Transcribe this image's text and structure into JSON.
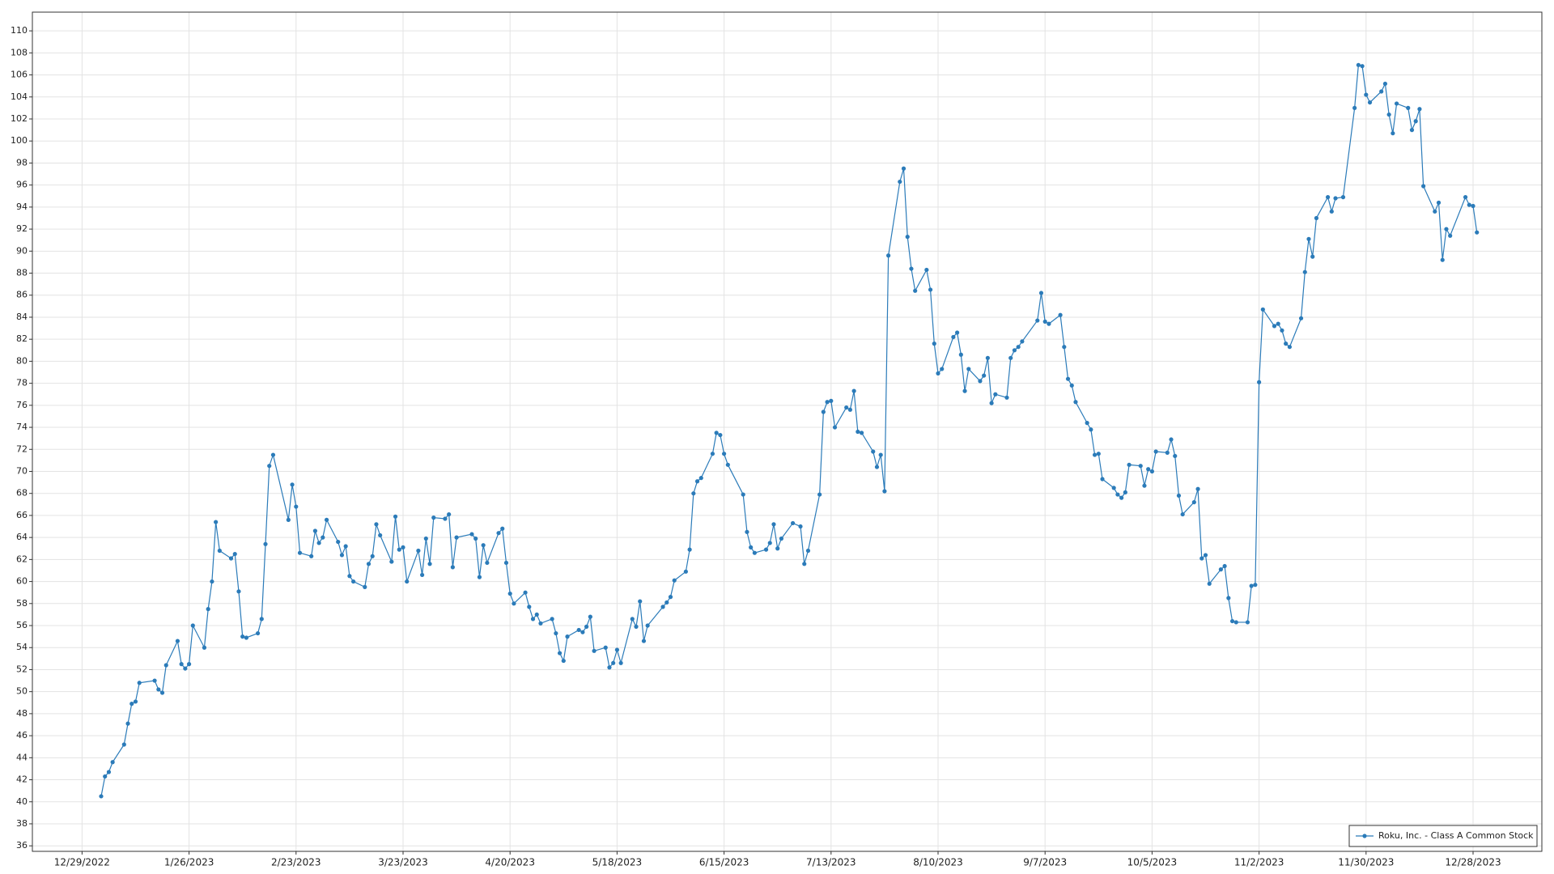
{
  "chart_data": {
    "type": "line",
    "x": [
      "1/3/2023",
      "1/4/2023",
      "1/5/2023",
      "1/6/2023",
      "1/9/2023",
      "1/10/2023",
      "1/11/2023",
      "1/12/2023",
      "1/13/2023",
      "1/17/2023",
      "1/18/2023",
      "1/19/2023",
      "1/20/2023",
      "1/23/2023",
      "1/24/2023",
      "1/25/2023",
      "1/26/2023",
      "1/27/2023",
      "1/30/2023",
      "1/31/2023",
      "2/1/2023",
      "2/2/2023",
      "2/3/2023",
      "2/6/2023",
      "2/7/2023",
      "2/8/2023",
      "2/9/2023",
      "2/10/2023",
      "2/13/2023",
      "2/14/2023",
      "2/15/2023",
      "2/16/2023",
      "2/17/2023",
      "2/21/2023",
      "2/22/2023",
      "2/23/2023",
      "2/24/2023",
      "2/27/2023",
      "2/28/2023",
      "3/1/2023",
      "3/2/2023",
      "3/3/2023",
      "3/6/2023",
      "3/7/2023",
      "3/8/2023",
      "3/9/2023",
      "3/10/2023",
      "3/13/2023",
      "3/14/2023",
      "3/15/2023",
      "3/16/2023",
      "3/17/2023",
      "3/20/2023",
      "3/21/2023",
      "3/22/2023",
      "3/23/2023",
      "3/24/2023",
      "3/27/2023",
      "3/28/2023",
      "3/29/2023",
      "3/30/2023",
      "3/31/2023",
      "4/3/2023",
      "4/4/2023",
      "4/5/2023",
      "4/6/2023",
      "4/10/2023",
      "4/11/2023",
      "4/12/2023",
      "4/13/2023",
      "4/14/2023",
      "4/17/2023",
      "4/18/2023",
      "4/19/2023",
      "4/20/2023",
      "4/21/2023",
      "4/24/2023",
      "4/25/2023",
      "4/26/2023",
      "4/27/2023",
      "4/28/2023",
      "5/1/2023",
      "5/2/2023",
      "5/3/2023",
      "5/4/2023",
      "5/5/2023",
      "5/8/2023",
      "5/9/2023",
      "5/10/2023",
      "5/11/2023",
      "5/12/2023",
      "5/15/2023",
      "5/16/2023",
      "5/17/2023",
      "5/18/2023",
      "5/19/2023",
      "5/22/2023",
      "5/23/2023",
      "5/24/2023",
      "5/25/2023",
      "5/26/2023",
      "5/30/2023",
      "5/31/2023",
      "6/1/2023",
      "6/2/2023",
      "6/5/2023",
      "6/6/2023",
      "6/7/2023",
      "6/8/2023",
      "6/9/2023",
      "6/12/2023",
      "6/13/2023",
      "6/14/2023",
      "6/15/2023",
      "6/16/2023",
      "6/20/2023",
      "6/21/2023",
      "6/22/2023",
      "6/23/2023",
      "6/26/2023",
      "6/27/2023",
      "6/28/2023",
      "6/29/2023",
      "6/30/2023",
      "7/3/2023",
      "7/5/2023",
      "7/6/2023",
      "7/7/2023",
      "7/10/2023",
      "7/11/2023",
      "7/12/2023",
      "7/13/2023",
      "7/14/2023",
      "7/17/2023",
      "7/18/2023",
      "7/19/2023",
      "7/20/2023",
      "7/21/2023",
      "7/24/2023",
      "7/25/2023",
      "7/26/2023",
      "7/27/2023",
      "7/28/2023",
      "7/31/2023",
      "8/1/2023",
      "8/2/2023",
      "8/3/2023",
      "8/4/2023",
      "8/7/2023",
      "8/8/2023",
      "8/9/2023",
      "8/10/2023",
      "8/11/2023",
      "8/14/2023",
      "8/15/2023",
      "8/16/2023",
      "8/17/2023",
      "8/18/2023",
      "8/21/2023",
      "8/22/2023",
      "8/23/2023",
      "8/24/2023",
      "8/25/2023",
      "8/28/2023",
      "8/29/2023",
      "8/30/2023",
      "8/31/2023",
      "9/1/2023",
      "9/5/2023",
      "9/6/2023",
      "9/7/2023",
      "9/8/2023",
      "9/11/2023",
      "9/12/2023",
      "9/13/2023",
      "9/14/2023",
      "9/15/2023",
      "9/18/2023",
      "9/19/2023",
      "9/20/2023",
      "9/21/2023",
      "9/22/2023",
      "9/25/2023",
      "9/26/2023",
      "9/27/2023",
      "9/28/2023",
      "9/29/2023",
      "10/2/2023",
      "10/3/2023",
      "10/4/2023",
      "10/5/2023",
      "10/6/2023",
      "10/9/2023",
      "10/10/2023",
      "10/11/2023",
      "10/12/2023",
      "10/13/2023",
      "10/16/2023",
      "10/17/2023",
      "10/18/2023",
      "10/19/2023",
      "10/20/2023",
      "10/23/2023",
      "10/24/2023",
      "10/25/2023",
      "10/26/2023",
      "10/27/2023",
      "10/30/2023",
      "10/31/2023",
      "11/1/2023",
      "11/2/2023",
      "11/3/2023",
      "11/6/2023",
      "11/7/2023",
      "11/8/2023",
      "11/9/2023",
      "11/10/2023",
      "11/13/2023",
      "11/14/2023",
      "11/15/2023",
      "11/16/2023",
      "11/17/2023",
      "11/20/2023",
      "11/21/2023",
      "11/22/2023",
      "11/24/2023",
      "11/27/2023",
      "11/28/2023",
      "11/29/2023",
      "11/30/2023",
      "12/1/2023",
      "12/4/2023",
      "12/5/2023",
      "12/6/2023",
      "12/7/2023",
      "12/8/2023",
      "12/11/2023",
      "12/12/2023",
      "12/13/2023",
      "12/14/2023",
      "12/15/2023",
      "12/18/2023",
      "12/19/2023",
      "12/20/2023",
      "12/21/2023",
      "12/22/2023",
      "12/26/2023",
      "12/27/2023",
      "12/28/2023",
      "12/29/2023"
    ],
    "series": [
      {
        "name": "Roku, Inc. - Class A Common Stock",
        "color": "#2b7bb9",
        "values": [
          40.5,
          42.3,
          42.7,
          43.6,
          45.2,
          47.1,
          48.9,
          49.1,
          50.8,
          51.0,
          50.2,
          49.9,
          52.4,
          54.6,
          52.5,
          52.1,
          52.5,
          56.0,
          54.0,
          57.5,
          60.0,
          65.4,
          62.8,
          62.1,
          62.5,
          59.1,
          55.0,
          54.9,
          55.3,
          56.6,
          63.4,
          70.5,
          71.5,
          65.6,
          68.8,
          66.8,
          62.6,
          62.3,
          64.6,
          63.5,
          64.0,
          65.6,
          63.6,
          62.4,
          63.2,
          60.5,
          60.0,
          59.5,
          61.6,
          62.3,
          65.2,
          64.2,
          61.8,
          65.9,
          62.9,
          63.1,
          60.0,
          62.8,
          60.6,
          63.9,
          61.6,
          65.8,
          65.7,
          66.1,
          61.3,
          64.0,
          64.3,
          63.9,
          60.4,
          63.3,
          61.7,
          64.4,
          64.8,
          61.7,
          58.9,
          58.0,
          59.0,
          57.7,
          56.6,
          57.0,
          56.2,
          56.6,
          55.3,
          53.5,
          52.8,
          55.0,
          55.6,
          55.4,
          55.9,
          56.8,
          53.7,
          54.0,
          52.2,
          52.6,
          53.8,
          52.6,
          56.6,
          55.9,
          58.2,
          54.6,
          56.0,
          57.7,
          58.1,
          58.6,
          60.1,
          60.9,
          62.9,
          68.0,
          69.1,
          69.4,
          71.6,
          73.5,
          73.3,
          71.6,
          70.6,
          67.9,
          64.5,
          63.1,
          62.6,
          62.9,
          63.5,
          65.2,
          63.0,
          63.9,
          65.3,
          65.0,
          61.6,
          62.8,
          67.9,
          75.4,
          76.3,
          76.4,
          74.0,
          75.8,
          75.6,
          77.3,
          73.6,
          73.5,
          71.8,
          70.4,
          71.5,
          68.2,
          89.6,
          96.3,
          97.5,
          91.3,
          88.4,
          86.4,
          88.3,
          86.5,
          81.6,
          78.9,
          79.3,
          82.2,
          82.6,
          80.6,
          77.3,
          79.3,
          78.2,
          78.7,
          80.3,
          76.2,
          77.0,
          76.7,
          80.3,
          81.0,
          81.3,
          81.8,
          83.7,
          86.2,
          83.6,
          83.4,
          84.2,
          81.3,
          78.4,
          77.8,
          76.3,
          74.4,
          73.8,
          71.5,
          71.6,
          69.3,
          68.5,
          67.9,
          67.6,
          68.1,
          70.6,
          70.5,
          68.7,
          70.2,
          70.0,
          71.8,
          71.7,
          72.9,
          71.4,
          67.8,
          66.1,
          67.2,
          68.4,
          62.1,
          62.4,
          59.8,
          61.1,
          61.4,
          58.5,
          56.4,
          56.3,
          56.3,
          59.6,
          59.7,
          78.1,
          84.7,
          83.2,
          83.4,
          82.8,
          81.6,
          81.3,
          83.9,
          88.1,
          91.1,
          89.5,
          93.0,
          94.9,
          93.6,
          94.8,
          94.9,
          103.0,
          106.9,
          106.8,
          104.2,
          103.5,
          104.5,
          105.2,
          102.4,
          100.7,
          103.4,
          103.0,
          101.0,
          101.8,
          102.9,
          95.9,
          93.6,
          94.4,
          89.2,
          92.0,
          91.4,
          94.9,
          94.2,
          94.1,
          91.7
        ]
      }
    ],
    "xlim": [
      "12/16/2022",
      "1/15/2024"
    ],
    "xticks": [
      "12/29/2022",
      "1/26/2023",
      "2/23/2023",
      "3/23/2023",
      "4/20/2023",
      "5/18/2023",
      "6/15/2023",
      "7/13/2023",
      "8/10/2023",
      "9/7/2023",
      "10/5/2023",
      "11/2/2023",
      "11/30/2023",
      "12/28/2023"
    ],
    "ylim": [
      35.5,
      111.7
    ],
    "yticks": [
      36,
      38,
      40,
      42,
      44,
      46,
      48,
      50,
      52,
      54,
      56,
      58,
      60,
      62,
      64,
      66,
      68,
      70,
      72,
      74,
      76,
      78,
      80,
      82,
      84,
      86,
      88,
      90,
      92,
      94,
      96,
      98,
      100,
      102,
      104,
      106,
      108,
      110
    ],
    "grid": true,
    "markers": true,
    "legend": "lower right"
  }
}
